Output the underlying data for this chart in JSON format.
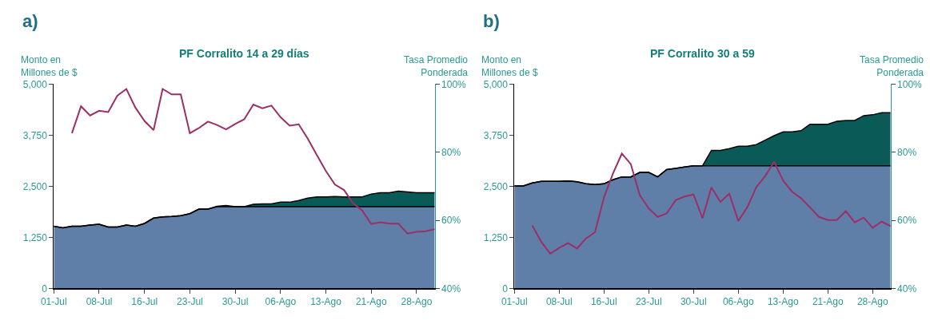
{
  "chart_data": [
    {
      "type": "area",
      "title": "PF Corralito 14 a 29 días",
      "ylabel": "Monto en\nMillones de $",
      "y2label": "Tasa Promedio\nPonderada",
      "annotations": [
        "a)"
      ],
      "categories": [
        "01-Jul",
        null,
        null,
        null,
        null,
        "08-Jul",
        null,
        null,
        null,
        null,
        "16-Jul",
        null,
        null,
        null,
        null,
        "23-Jul",
        null,
        null,
        null,
        null,
        "30-Jul",
        null,
        null,
        null,
        null,
        "06-Ago",
        null,
        null,
        null,
        null,
        "13-Ago",
        null,
        null,
        null,
        null,
        "21-Ago",
        null,
        null,
        null,
        null,
        "28-Ago",
        null,
        null
      ],
      "stacked": true,
      "series": [
        {
          "color": "#5f7fa8",
          "values": [
            1520,
            1480,
            1520,
            1520,
            1550,
            1570,
            1500,
            1500,
            1550,
            1520,
            1590,
            1720,
            1750,
            1760,
            1780,
            1830,
            1940,
            1940,
            2000,
            2000,
            2000,
            2000,
            2000,
            2000,
            2000,
            2000,
            2000,
            2000,
            2000,
            2000,
            2000,
            2000,
            2000,
            2000,
            2000,
            2000,
            2000,
            2000,
            2000,
            2000,
            2000,
            2000,
            2000
          ]
        },
        {
          "color": "#0a5b57",
          "values": [
            0,
            0,
            0,
            0,
            0,
            0,
            0,
            0,
            0,
            0,
            0,
            0,
            0,
            0,
            0,
            0,
            0,
            0,
            10,
            30,
            0,
            0,
            60,
            70,
            70,
            110,
            110,
            150,
            210,
            240,
            240,
            250,
            240,
            240,
            240,
            310,
            340,
            340,
            380,
            360,
            340,
            340,
            340
          ]
        },
        {
          "type": "line",
          "axis": "y2",
          "color": "#9b2f66",
          "values": [
            null,
            null,
            85.6,
            93.5,
            90.8,
            92.2,
            91.8,
            96.6,
            98.6,
            93.1,
            89.2,
            86.5,
            98.6,
            97.0,
            97.0,
            85.6,
            87.1,
            89.0,
            88.0,
            86.7,
            88.3,
            89.7,
            94.0,
            92.9,
            93.7,
            90.3,
            87.8,
            88.2,
            84.0,
            79.2,
            74.5,
            70.5,
            68.9,
            65.0,
            62.9,
            58.9,
            59.4,
            59.0,
            59.0,
            56.1,
            56.6,
            56.8,
            57.4
          ]
        }
      ],
      "ylim": [
        0,
        5000
      ],
      "yticks": [
        0,
        {
          "value": 1250,
          "label": "1,250"
        },
        {
          "value": 2500,
          "label": "2,500"
        },
        {
          "value": 3750,
          "label": "3,750"
        },
        {
          "value": 5000,
          "label": "5,000"
        }
      ],
      "y2lim": [
        40,
        100
      ],
      "y2ticks": [
        {
          "value": 40,
          "label": "40%"
        },
        {
          "value": 60,
          "label": "60%"
        },
        {
          "value": 80,
          "label": "80%"
        },
        {
          "value": 100,
          "label": "100%"
        }
      ]
    },
    {
      "type": "area",
      "title": "PF Corralito 30 a 59",
      "ylabel": "Monto en\nMillones de $",
      "y2label": "Tasa Promedio\nPonderada",
      "annotations": [
        "b)"
      ],
      "categories": [
        "01-Jul",
        null,
        null,
        null,
        null,
        "08-Jul",
        null,
        null,
        null,
        null,
        "16-Jul",
        null,
        null,
        null,
        null,
        "23-Jul",
        null,
        null,
        null,
        null,
        "30-Jul",
        null,
        null,
        null,
        null,
        "06-Ago",
        null,
        null,
        null,
        null,
        "13-Ago",
        null,
        null,
        null,
        null,
        "21-Ago",
        null,
        null,
        null,
        null,
        "28-Ago",
        null,
        null
      ],
      "stacked": true,
      "series": [
        {
          "color": "#5f7fa8",
          "values": [
            2510,
            2510,
            2580,
            2620,
            2620,
            2620,
            2630,
            2610,
            2560,
            2540,
            2560,
            2660,
            2730,
            2730,
            2840,
            2840,
            2730,
            2910,
            2940,
            2970,
            3000,
            3000,
            3000,
            3000,
            3000,
            3000,
            3000,
            3000,
            3000,
            3000,
            3000,
            3000,
            3000,
            3000,
            3000,
            3000,
            3000,
            3000,
            3000,
            3000,
            3000,
            3000,
            3000
          ]
        },
        {
          "color": "#0a5b57",
          "values": [
            0,
            0,
            0,
            0,
            0,
            0,
            0,
            0,
            0,
            0,
            0,
            0,
            0,
            0,
            0,
            0,
            0,
            0,
            0,
            0,
            0,
            0,
            380,
            380,
            420,
            480,
            480,
            520,
            630,
            740,
            830,
            830,
            860,
            1020,
            1020,
            1020,
            1090,
            1110,
            1110,
            1230,
            1250,
            1300,
            1300
          ]
        },
        {
          "type": "line",
          "axis": "y2",
          "color": "#9b2f66",
          "values": [
            null,
            null,
            58.5,
            53.7,
            50.2,
            51.9,
            53.3,
            51.7,
            54.7,
            56.5,
            66.7,
            73.7,
            79.6,
            76.5,
            67.4,
            63.5,
            61.0,
            62.0,
            65.9,
            67.0,
            67.6,
            60.6,
            69.7,
            65.4,
            67.8,
            59.8,
            63.8,
            69.7,
            73.0,
            77.2,
            71.7,
            68.4,
            66.5,
            63.8,
            61.0,
            60.1,
            60.1,
            62.7,
            59.4,
            60.8,
            57.8,
            59.6,
            58.3
          ]
        }
      ],
      "ylim": [
        0,
        5000
      ],
      "yticks": [
        0,
        {
          "value": 1250,
          "label": "1,250"
        },
        {
          "value": 2500,
          "label": "2,500"
        },
        {
          "value": 3750,
          "label": "3,750"
        },
        {
          "value": 5000,
          "label": "5,000"
        }
      ],
      "y2lim": [
        40,
        100
      ],
      "y2ticks": [
        {
          "value": 40,
          "label": "40%"
        },
        {
          "value": 60,
          "label": "60%"
        },
        {
          "value": 80,
          "label": "80%"
        },
        {
          "value": 100,
          "label": "100%"
        }
      ]
    }
  ]
}
